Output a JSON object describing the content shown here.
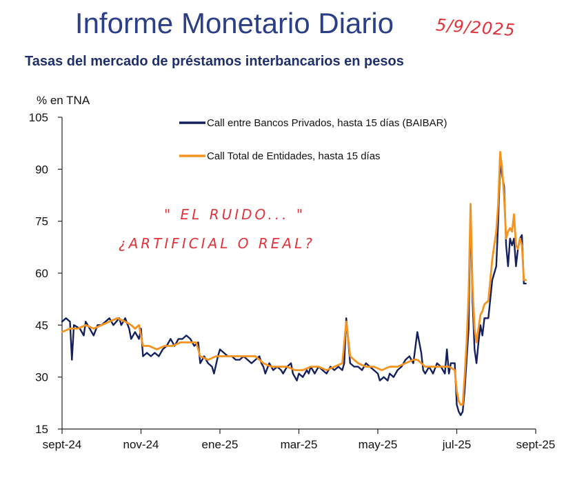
{
  "header": {
    "title": "Informe Monetario Diario",
    "date_note": "5/9/2025",
    "subtitle": "Tasas del mercado de préstamos interbancarios en pesos"
  },
  "annotation": {
    "line1": "\" EL RUIDO... \"",
    "line2": "¿ARTIFICIAL O REAL?"
  },
  "colors": {
    "baibar": "#14205e",
    "total": "#f5931f",
    "axis": "#222222",
    "note": "#e0323a"
  },
  "chart_data": {
    "type": "line",
    "title": "Tasas del mercado de préstamos interbancarios en pesos",
    "ylabel": "% en TNA",
    "xlabel": "",
    "ylim": [
      15,
      105
    ],
    "yticks": [
      105,
      90,
      75,
      60,
      45,
      30,
      15
    ],
    "xlim": [
      0,
      12
    ],
    "xticks": [
      {
        "label": "sept-24",
        "x": 0
      },
      {
        "label": "nov-24",
        "x": 2
      },
      {
        "label": "ene-25",
        "x": 4
      },
      {
        "label": "mar-25",
        "x": 6
      },
      {
        "label": "may-25",
        "x": 8
      },
      {
        "label": "jul-25",
        "x": 10
      },
      {
        "label": "sept-25",
        "x": 12
      }
    ],
    "grid": false,
    "legend_position": "top-right",
    "series": [
      {
        "name": "Call entre Bancos Privados, hasta 15 días (BAIBAR)",
        "color": "#14205e",
        "points": [
          [
            0.0,
            46
          ],
          [
            0.1,
            47
          ],
          [
            0.2,
            46
          ],
          [
            0.25,
            35
          ],
          [
            0.3,
            45
          ],
          [
            0.45,
            44
          ],
          [
            0.55,
            42
          ],
          [
            0.6,
            46
          ],
          [
            0.7,
            44
          ],
          [
            0.8,
            42
          ],
          [
            0.9,
            45
          ],
          [
            1.0,
            45
          ],
          [
            1.1,
            46
          ],
          [
            1.2,
            47
          ],
          [
            1.3,
            45
          ],
          [
            1.45,
            47
          ],
          [
            1.5,
            45
          ],
          [
            1.6,
            47
          ],
          [
            1.7,
            44
          ],
          [
            1.75,
            41
          ],
          [
            1.85,
            43
          ],
          [
            1.95,
            41
          ],
          [
            2.0,
            44
          ],
          [
            2.05,
            36
          ],
          [
            2.15,
            37
          ],
          [
            2.25,
            36
          ],
          [
            2.35,
            37
          ],
          [
            2.45,
            36
          ],
          [
            2.55,
            38
          ],
          [
            2.65,
            39
          ],
          [
            2.75,
            41
          ],
          [
            2.85,
            39
          ],
          [
            2.95,
            41
          ],
          [
            3.05,
            41
          ],
          [
            3.15,
            42
          ],
          [
            3.25,
            41
          ],
          [
            3.35,
            39
          ],
          [
            3.45,
            40
          ],
          [
            3.5,
            34
          ],
          [
            3.6,
            36
          ],
          [
            3.7,
            34
          ],
          [
            3.8,
            33
          ],
          [
            3.85,
            31
          ],
          [
            3.95,
            36
          ],
          [
            4.0,
            38
          ],
          [
            4.1,
            37
          ],
          [
            4.2,
            36
          ],
          [
            4.3,
            36
          ],
          [
            4.4,
            35
          ],
          [
            4.5,
            35
          ],
          [
            4.6,
            36
          ],
          [
            4.7,
            35
          ],
          [
            4.8,
            34
          ],
          [
            4.9,
            35
          ],
          [
            5.0,
            36
          ],
          [
            5.05,
            34
          ],
          [
            5.1,
            33
          ],
          [
            5.15,
            31
          ],
          [
            5.25,
            34
          ],
          [
            5.35,
            32
          ],
          [
            5.45,
            33
          ],
          [
            5.55,
            32
          ],
          [
            5.6,
            31
          ],
          [
            5.7,
            33
          ],
          [
            5.8,
            34
          ],
          [
            5.85,
            31
          ],
          [
            5.95,
            29
          ],
          [
            6.0,
            31
          ],
          [
            6.1,
            30
          ],
          [
            6.2,
            32
          ],
          [
            6.25,
            31
          ],
          [
            6.3,
            33
          ],
          [
            6.4,
            31
          ],
          [
            6.5,
            33
          ],
          [
            6.6,
            32
          ],
          [
            6.7,
            31
          ],
          [
            6.8,
            33
          ],
          [
            6.9,
            32
          ],
          [
            7.0,
            33
          ],
          [
            7.1,
            32
          ],
          [
            7.15,
            34
          ],
          [
            7.2,
            47
          ],
          [
            7.3,
            34
          ],
          [
            7.4,
            33
          ],
          [
            7.5,
            33
          ],
          [
            7.6,
            32
          ],
          [
            7.7,
            34
          ],
          [
            7.8,
            33
          ],
          [
            7.9,
            32
          ],
          [
            8.0,
            31
          ],
          [
            8.05,
            29
          ],
          [
            8.15,
            30
          ],
          [
            8.25,
            29
          ],
          [
            8.3,
            31
          ],
          [
            8.4,
            30
          ],
          [
            8.5,
            32
          ],
          [
            8.6,
            33
          ],
          [
            8.7,
            35
          ],
          [
            8.8,
            36
          ],
          [
            8.9,
            34
          ],
          [
            9.0,
            43
          ],
          [
            9.1,
            37
          ],
          [
            9.15,
            32
          ],
          [
            9.2,
            31
          ],
          [
            9.3,
            33
          ],
          [
            9.4,
            31
          ],
          [
            9.5,
            34
          ],
          [
            9.6,
            33
          ],
          [
            9.7,
            31
          ],
          [
            9.75,
            38
          ],
          [
            9.8,
            31
          ],
          [
            9.85,
            34
          ],
          [
            9.95,
            34
          ],
          [
            10.0,
            22
          ],
          [
            10.05,
            20
          ],
          [
            10.1,
            19
          ],
          [
            10.15,
            20
          ],
          [
            10.2,
            26
          ],
          [
            10.25,
            35
          ],
          [
            10.3,
            44
          ],
          [
            10.35,
            79
          ],
          [
            10.4,
            52
          ],
          [
            10.45,
            38
          ],
          [
            10.5,
            34
          ],
          [
            10.55,
            40
          ],
          [
            10.6,
            45
          ],
          [
            10.65,
            42
          ],
          [
            10.7,
            47
          ],
          [
            10.8,
            47
          ],
          [
            10.9,
            58
          ],
          [
            11.0,
            62
          ],
          [
            11.05,
            75
          ],
          [
            11.1,
            92
          ],
          [
            11.15,
            88
          ],
          [
            11.2,
            85
          ],
          [
            11.25,
            68
          ],
          [
            11.3,
            62
          ],
          [
            11.35,
            70
          ],
          [
            11.4,
            68
          ],
          [
            11.45,
            70
          ],
          [
            11.5,
            62
          ],
          [
            11.55,
            67
          ],
          [
            11.6,
            70
          ],
          [
            11.65,
            71
          ],
          [
            11.7,
            57
          ],
          [
            11.75,
            57
          ]
        ]
      },
      {
        "name": "Call Total de Entidades, hasta 15 días",
        "color": "#f5931f",
        "points": [
          [
            0.0,
            43
          ],
          [
            0.2,
            44
          ],
          [
            0.4,
            44
          ],
          [
            0.6,
            45
          ],
          [
            0.8,
            44
          ],
          [
            1.0,
            45
          ],
          [
            1.2,
            46
          ],
          [
            1.4,
            47
          ],
          [
            1.6,
            46
          ],
          [
            1.75,
            45
          ],
          [
            1.85,
            44
          ],
          [
            1.95,
            45
          ],
          [
            2.05,
            39
          ],
          [
            2.2,
            39
          ],
          [
            2.4,
            38
          ],
          [
            2.6,
            39
          ],
          [
            2.8,
            39
          ],
          [
            3.0,
            40
          ],
          [
            3.2,
            40
          ],
          [
            3.4,
            40
          ],
          [
            3.5,
            36
          ],
          [
            3.7,
            35
          ],
          [
            3.9,
            36
          ],
          [
            4.1,
            36
          ],
          [
            4.3,
            36
          ],
          [
            4.5,
            36
          ],
          [
            4.7,
            36
          ],
          [
            4.9,
            36
          ],
          [
            5.1,
            34
          ],
          [
            5.3,
            33
          ],
          [
            5.5,
            33
          ],
          [
            5.7,
            33
          ],
          [
            5.9,
            32
          ],
          [
            6.1,
            32
          ],
          [
            6.3,
            33
          ],
          [
            6.5,
            33
          ],
          [
            6.7,
            32
          ],
          [
            6.9,
            33
          ],
          [
            7.1,
            34
          ],
          [
            7.2,
            46
          ],
          [
            7.3,
            36
          ],
          [
            7.5,
            34
          ],
          [
            7.7,
            33
          ],
          [
            7.9,
            33
          ],
          [
            8.1,
            32
          ],
          [
            8.3,
            33
          ],
          [
            8.5,
            33
          ],
          [
            8.7,
            34
          ],
          [
            8.9,
            35
          ],
          [
            9.0,
            35
          ],
          [
            9.2,
            33
          ],
          [
            9.4,
            33
          ],
          [
            9.6,
            33
          ],
          [
            9.8,
            33
          ],
          [
            9.95,
            32
          ],
          [
            10.0,
            26
          ],
          [
            10.05,
            23
          ],
          [
            10.1,
            22
          ],
          [
            10.15,
            22
          ],
          [
            10.2,
            30
          ],
          [
            10.25,
            40
          ],
          [
            10.3,
            54
          ],
          [
            10.35,
            80
          ],
          [
            10.4,
            56
          ],
          [
            10.45,
            44
          ],
          [
            10.5,
            40
          ],
          [
            10.55,
            44
          ],
          [
            10.6,
            48
          ],
          [
            10.65,
            49
          ],
          [
            10.7,
            51
          ],
          [
            10.8,
            52
          ],
          [
            10.9,
            64
          ],
          [
            11.0,
            72
          ],
          [
            11.05,
            80
          ],
          [
            11.1,
            95
          ],
          [
            11.15,
            90
          ],
          [
            11.2,
            82
          ],
          [
            11.25,
            70
          ],
          [
            11.3,
            72
          ],
          [
            11.35,
            73
          ],
          [
            11.4,
            72
          ],
          [
            11.45,
            77
          ],
          [
            11.5,
            68
          ],
          [
            11.55,
            67
          ],
          [
            11.6,
            70
          ],
          [
            11.65,
            68
          ],
          [
            11.7,
            58
          ],
          [
            11.75,
            58
          ]
        ]
      }
    ]
  }
}
